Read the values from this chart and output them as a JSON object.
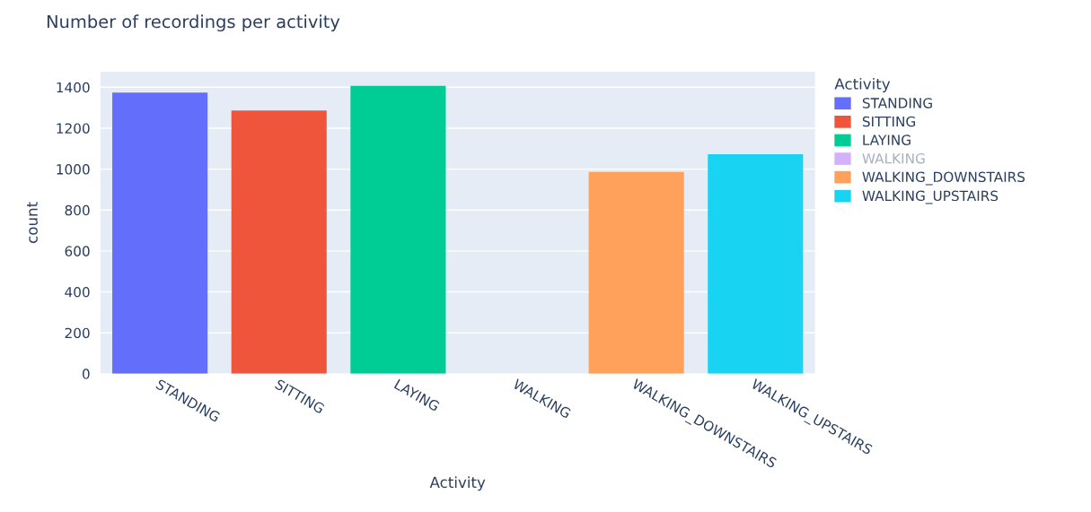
{
  "chart_data": {
    "type": "bar",
    "title": "Number of recordings per activity",
    "xlabel": "Activity",
    "ylabel": "count",
    "legend_title": "Activity",
    "categories": [
      "STANDING",
      "SITTING",
      "LAYING",
      "WALKING",
      "WALKING_DOWNSTAIRS",
      "WALKING_UPSTAIRS"
    ],
    "stacked": true,
    "series": [
      {
        "name": "STANDING",
        "color": "#636efa",
        "values": [
          1374,
          null,
          null,
          null,
          null,
          null
        ]
      },
      {
        "name": "SITTING",
        "color": "#ef553b",
        "values": [
          null,
          1286,
          null,
          null,
          null,
          null
        ]
      },
      {
        "name": "LAYING",
        "color": "#00cc96",
        "values": [
          null,
          null,
          1407,
          null,
          null,
          null
        ]
      },
      {
        "name": "WALKING",
        "color": "#ab63fa",
        "values": [
          null,
          null,
          null,
          null,
          null,
          null
        ]
      },
      {
        "name": "WALKING_DOWNSTAIRS",
        "color": "#ffa15a",
        "values": [
          null,
          null,
          null,
          null,
          986,
          null
        ]
      },
      {
        "name": "WALKING_UPSTAIRS",
        "color": "#19d3f3",
        "values": [
          null,
          null,
          null,
          null,
          null,
          1073
        ]
      }
    ],
    "ylim": [
      0,
      1476
    ],
    "yticks": [
      0,
      200,
      400,
      600,
      800,
      1000,
      1200,
      1400
    ],
    "grid": "y",
    "legend": "top right"
  }
}
